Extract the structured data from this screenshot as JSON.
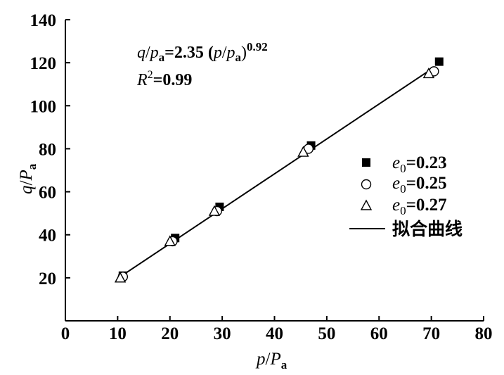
{
  "chart_data": {
    "type": "scatter",
    "title": "",
    "xlim": [
      0,
      80
    ],
    "ylim": [
      0,
      140
    ],
    "x_ticks": [
      0,
      10,
      20,
      30,
      40,
      50,
      60,
      70,
      80
    ],
    "y_ticks": [
      20,
      40,
      60,
      80,
      100,
      120,
      140
    ],
    "x_tick_labels": [
      "0",
      "10",
      "20",
      "30",
      "40",
      "50",
      "60",
      "70",
      "80"
    ],
    "y_tick_labels": [
      "20",
      "40",
      "60",
      "80",
      "100",
      "120",
      "140"
    ],
    "xlabel": {
      "var": "p",
      "slash": "/",
      "P": "P",
      "sub": "a"
    },
    "ylabel": {
      "var": "q",
      "slash": "/",
      "P": "P",
      "sub": "a"
    },
    "grid": false,
    "legend_position": "right",
    "series": [
      {
        "name": "e0=0.23",
        "label_var": "e",
        "label_sub": "0",
        "label_val": "=0.23",
        "marker": "filled-square",
        "points": [
          [
            11,
            21
          ],
          [
            21,
            38.5
          ],
          [
            29.5,
            53
          ],
          [
            47,
            81.5
          ],
          [
            71.5,
            120.5
          ]
        ]
      },
      {
        "name": "e0=0.25",
        "label_var": "e",
        "label_sub": "0",
        "label_val": "=0.25",
        "marker": "open-circle",
        "points": [
          [
            11,
            20.5
          ],
          [
            20.5,
            37
          ],
          [
            29,
            51
          ],
          [
            46.5,
            80
          ],
          [
            70.5,
            116
          ]
        ]
      },
      {
        "name": "e0=0.27",
        "label_var": "e",
        "label_sub": "0",
        "label_val": "=0.27",
        "marker": "open-triangle",
        "points": [
          [
            10.5,
            20
          ],
          [
            20,
            37
          ],
          [
            28.5,
            51
          ],
          [
            45.5,
            78.5
          ],
          [
            69.5,
            115
          ]
        ]
      }
    ],
    "fit": {
      "name": "拟合曲线",
      "coefficient": 2.35,
      "exponent": 0.92,
      "x_range": [
        10.5,
        70
      ],
      "y_range": [
        20.5,
        117
      ]
    },
    "annotation": {
      "line1": {
        "q": "q",
        "slash1": "/",
        "p1": "p",
        "sub1": "a",
        "eq": "=2.35 (",
        "p2": "p",
        "slash2": "/",
        "p3": "p",
        "sub2": "a",
        "close": ")",
        "exp": "0.92"
      },
      "line2": {
        "R": "R",
        "sup": "2",
        "val": "=0.99"
      }
    }
  }
}
